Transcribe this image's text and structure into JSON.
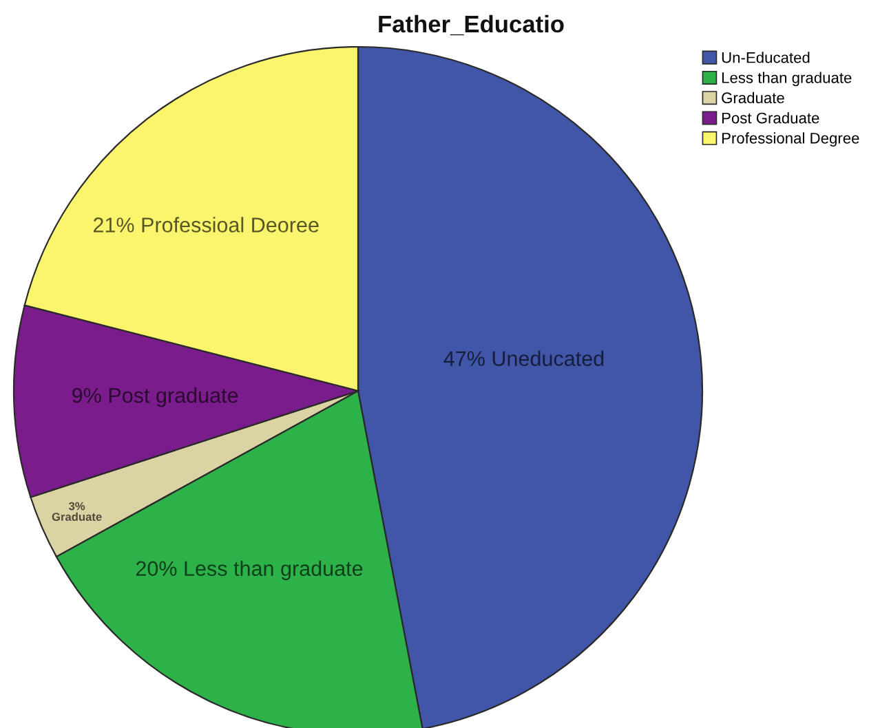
{
  "chart_data": {
    "type": "pie",
    "title": "Father_Educatio",
    "categories": [
      "Un-Educated",
      "Less than graduate",
      "Graduate",
      "Post Graduate",
      "Professional Degree"
    ],
    "values": [
      47,
      20,
      3,
      9,
      21
    ],
    "colors": [
      "#4156a8",
      "#2db24a",
      "#dcd3a5",
      "#7b1c8c",
      "#faf56c"
    ],
    "value_labels": [
      "47% Uneducated",
      "20% Less than graduate",
      "3%\nGraduate",
      "9% Post graduate",
      "21% Professioal Deoree"
    ],
    "legend": "top right"
  }
}
